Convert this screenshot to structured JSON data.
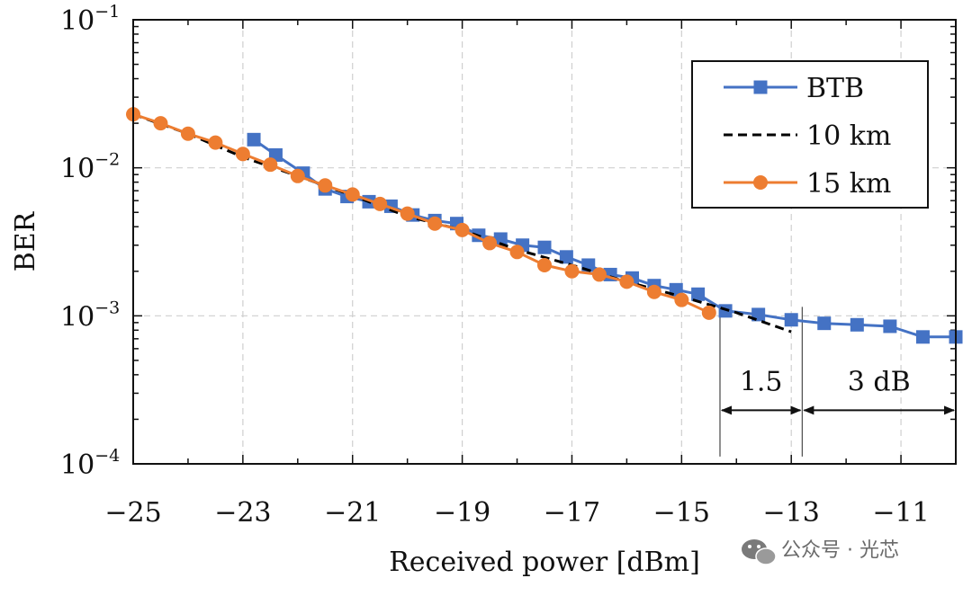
{
  "chart_data": {
    "type": "line",
    "xlabel": "Received power [dBm]",
    "ylabel": "BER",
    "x_ticks": [
      -25,
      -23,
      -21,
      -19,
      -17,
      -15,
      -13,
      -11
    ],
    "x_tick_labels": [
      "−25",
      "−23",
      "−21",
      "−19",
      "−17",
      "−15",
      "−13",
      "−11"
    ],
    "xlim": [
      -25,
      -10
    ],
    "ylim": [
      0.0001,
      0.1
    ],
    "y_scale": "log",
    "y_ticks": [
      {
        "value": 0.1,
        "base": "10",
        "exp": "−1"
      },
      {
        "value": 0.01,
        "base": "10",
        "exp": "−2"
      },
      {
        "value": 0.001,
        "base": "10",
        "exp": "−3"
      },
      {
        "value": 0.0001,
        "base": "10",
        "exp": "−4"
      }
    ],
    "grid": true,
    "legend_position": "top-right",
    "series": [
      {
        "name": "BTB",
        "color": "#4472c4",
        "marker": "square",
        "line": "solid",
        "x": [
          -22.8,
          -22.4,
          -21.9,
          -21.5,
          -21.1,
          -20.7,
          -20.3,
          -19.9,
          -19.5,
          -19.1,
          -18.7,
          -18.3,
          -17.9,
          -17.5,
          -17.1,
          -16.7,
          -16.3,
          -15.9,
          -15.5,
          -15.1,
          -14.7,
          -14.2,
          -13.6,
          -13.0,
          -12.4,
          -11.8,
          -11.2,
          -10.6,
          -10.0
        ],
        "y": [
          0.0155,
          0.0122,
          0.0092,
          0.0072,
          0.0064,
          0.0059,
          0.0055,
          0.0048,
          0.0044,
          0.0042,
          0.0035,
          0.0033,
          0.003,
          0.0029,
          0.0025,
          0.0022,
          0.0019,
          0.0018,
          0.0016,
          0.0015,
          0.0014,
          0.00108,
          0.00102,
          0.00094,
          0.00089,
          0.00087,
          0.00085,
          0.00072,
          0.00072
        ]
      },
      {
        "name": "10 km",
        "color": "#000000",
        "marker": "none",
        "line": "dashed",
        "x": [
          -25.0,
          -24.0,
          -23.0,
          -22.0,
          -21.0,
          -20.0,
          -19.0,
          -18.0,
          -17.0,
          -16.0,
          -15.0,
          -14.0,
          -13.0
        ],
        "y": [
          0.023,
          0.017,
          0.0118,
          0.0088,
          0.0065,
          0.0047,
          0.0038,
          0.0028,
          0.0022,
          0.0017,
          0.00135,
          0.00105,
          0.00078
        ]
      },
      {
        "name": "15 km",
        "color": "#ed7d31",
        "marker": "circle",
        "line": "solid",
        "x": [
          -25.0,
          -24.5,
          -24.0,
          -23.5,
          -23.0,
          -22.5,
          -22.0,
          -21.5,
          -21.0,
          -20.5,
          -20.0,
          -19.5,
          -19.0,
          -18.5,
          -18.0,
          -17.5,
          -17.0,
          -16.5,
          -16.0,
          -15.5,
          -15.0,
          -14.5
        ],
        "y": [
          0.023,
          0.02,
          0.017,
          0.0148,
          0.0124,
          0.0105,
          0.0088,
          0.0076,
          0.0066,
          0.0057,
          0.0049,
          0.0042,
          0.0038,
          0.0031,
          0.0027,
          0.0022,
          0.002,
          0.0019,
          0.0017,
          0.00145,
          0.00128,
          0.00105
        ]
      }
    ],
    "annotations": [
      {
        "label": "1.5",
        "x_from": -14.3,
        "x_to": -12.8,
        "y": 0.00023
      },
      {
        "label": "3 dB",
        "x_from": -12.8,
        "x_to": -10.0,
        "y": 0.00023
      }
    ]
  },
  "watermark": {
    "text": "公众号 · 光芯",
    "icon": "wechat-icon"
  }
}
